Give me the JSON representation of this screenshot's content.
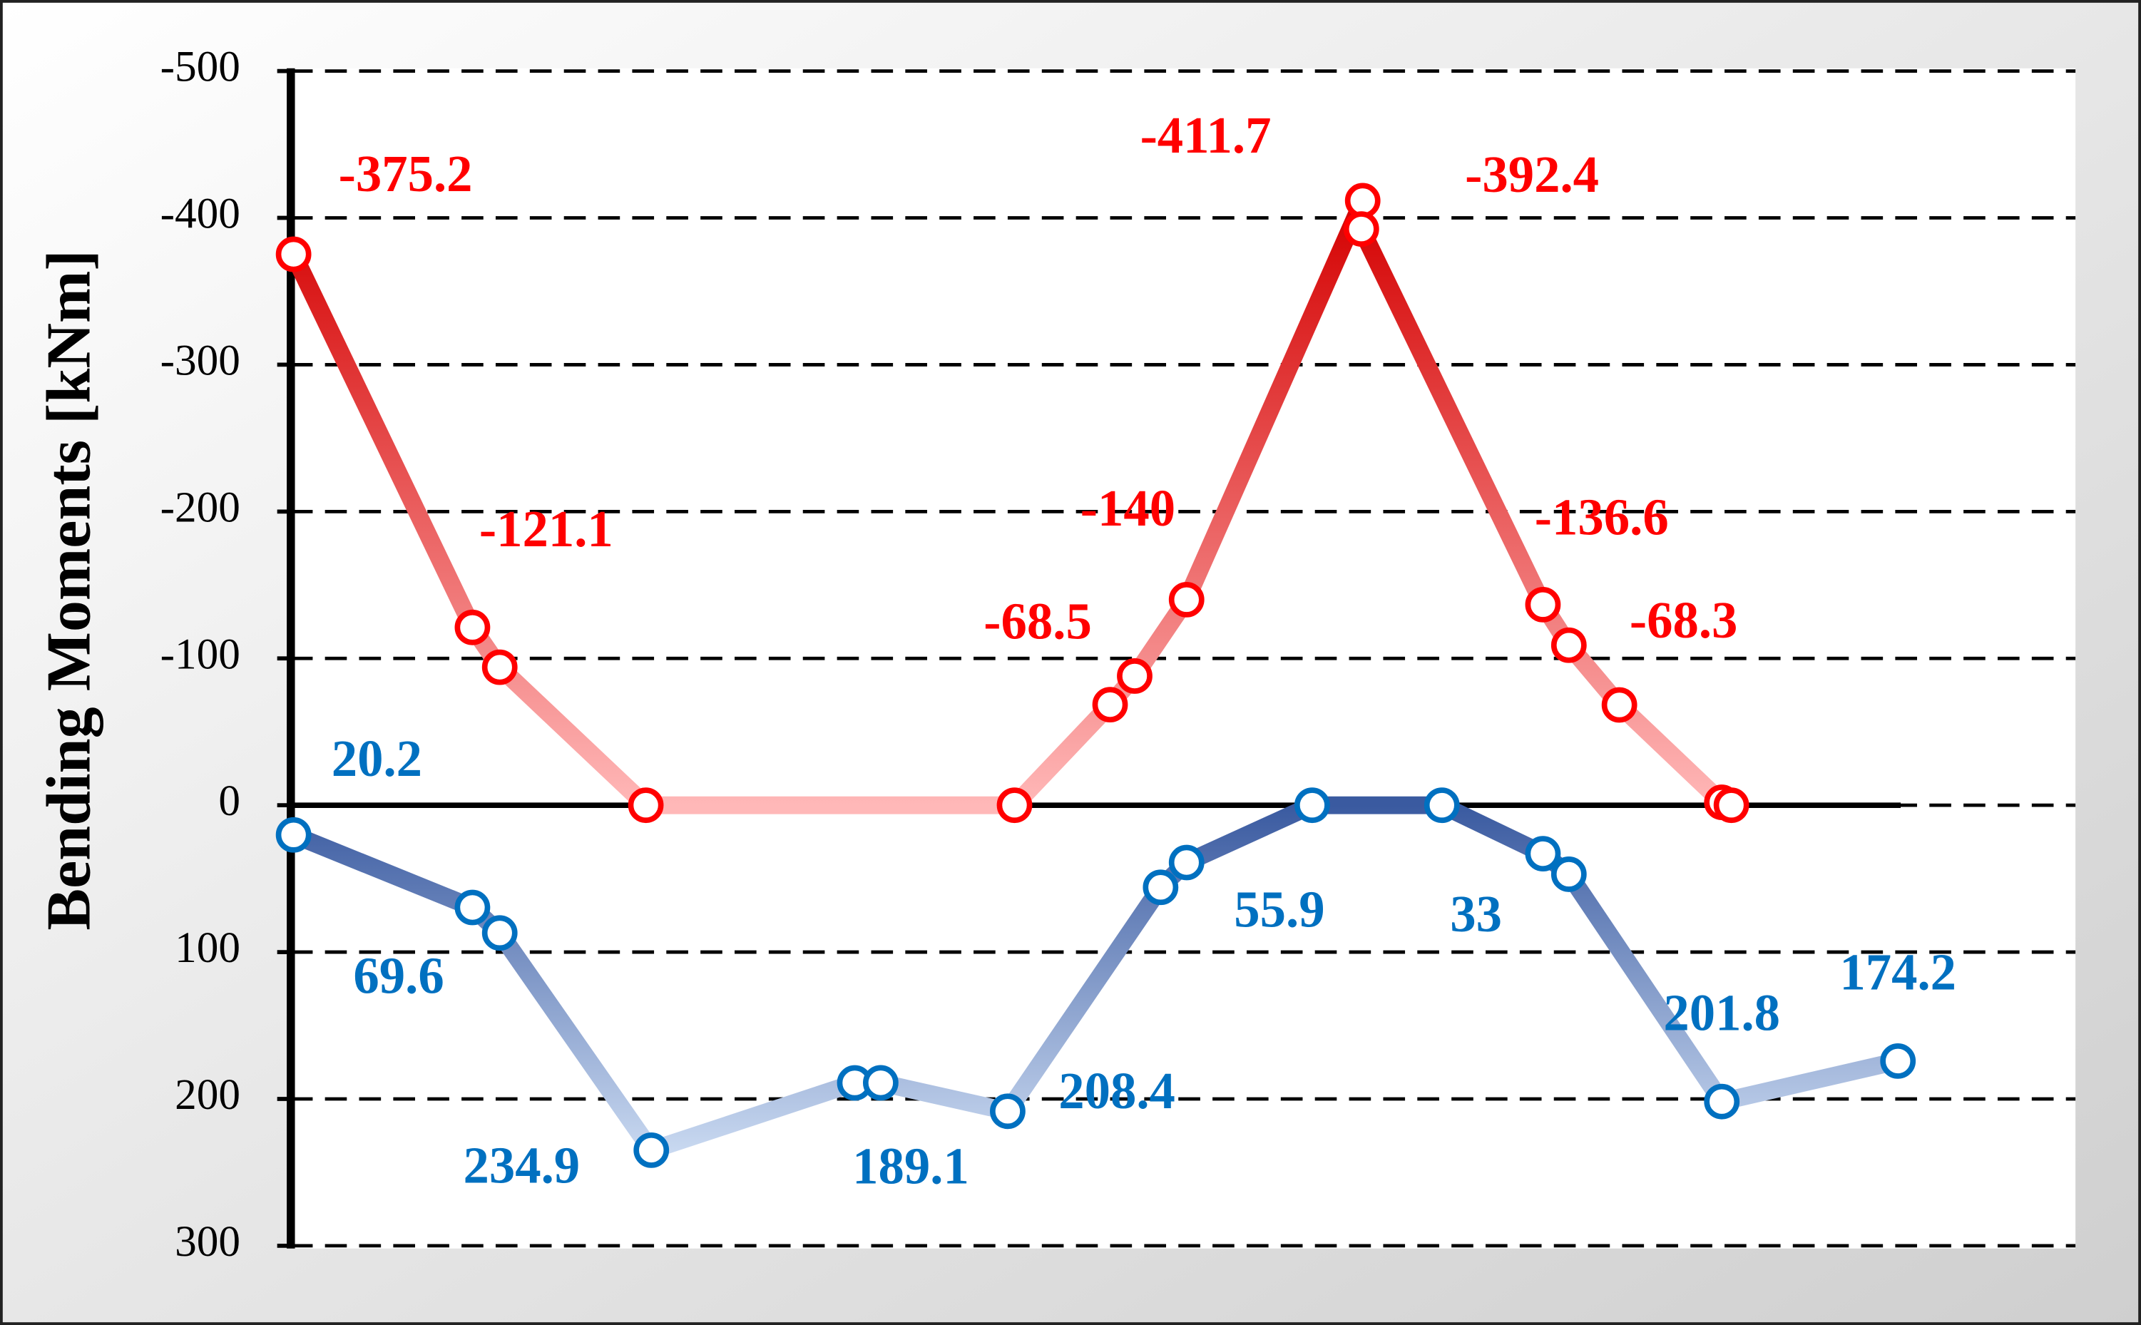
{
  "chart_data": {
    "type": "line",
    "y_label": "Bending Moments [kNm]",
    "ylim": [
      -500,
      300
    ],
    "y_inverted": true,
    "yticks": [
      -500,
      -400,
      -300,
      -200,
      -100,
      0,
      100,
      200,
      300
    ],
    "xlim": [
      0,
      1307
    ],
    "grid": true,
    "series": [
      {
        "color": "#ff0000",
        "line_colors": [
          "#d40000",
          "#ffb8b8"
        ],
        "x": [
          2,
          133,
          153,
          260,
          530,
          600,
          618,
          656,
          785,
          784,
          917,
          936,
          973,
          1048,
          1055
        ],
        "values": [
          -375.2,
          -121.1,
          -94,
          0,
          0,
          -68.5,
          -88,
          -140,
          -411.7,
          -392.4,
          -136.6,
          -109,
          -68.3,
          -2,
          0
        ],
        "value_labels": [
          "-375.2",
          "-121.1",
          null,
          null,
          null,
          "-68.5",
          null,
          "-140",
          "-411.7",
          "-392.4",
          "-136.6",
          null,
          "-68.3",
          null,
          null
        ]
      },
      {
        "color": "#0070c0",
        "line_colors": [
          "#c8d8f0",
          "#3a5aa0"
        ],
        "x": [
          2,
          133,
          153,
          264,
          413,
          432,
          525,
          637,
          656,
          748,
          843,
          917,
          936,
          1048,
          1177
        ],
        "values": [
          20.2,
          69.6,
          87,
          234.9,
          189.1,
          189,
          208.4,
          55.9,
          39,
          0,
          0,
          33,
          47,
          201.8,
          174.2
        ],
        "value_labels": [
          "20.2",
          "69.6",
          null,
          "234.9",
          "189.1",
          null,
          "208.4",
          "55.9",
          null,
          null,
          null,
          "33",
          null,
          "201.8",
          "174.2"
        ]
      }
    ]
  }
}
